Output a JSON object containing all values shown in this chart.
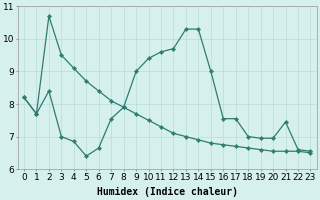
{
  "line1_x": [
    0,
    1,
    2,
    3,
    4,
    5,
    6,
    7,
    8,
    9,
    10,
    11,
    12,
    13,
    14,
    15,
    16,
    17,
    18,
    19,
    20,
    21,
    22,
    23
  ],
  "line1_y": [
    8.2,
    7.7,
    10.7,
    9.5,
    9.1,
    8.7,
    8.4,
    8.1,
    7.9,
    7.7,
    7.5,
    7.3,
    7.1,
    7.0,
    6.9,
    6.8,
    6.75,
    6.7,
    6.65,
    6.6,
    6.55,
    6.55,
    6.55,
    6.5
  ],
  "line2_x": [
    0,
    1,
    2,
    3,
    4,
    5,
    6,
    7,
    8,
    9,
    10,
    11,
    12,
    13,
    14,
    15,
    16,
    17,
    18,
    19,
    20,
    21,
    22,
    23
  ],
  "line2_y": [
    8.2,
    7.7,
    8.4,
    7.0,
    6.85,
    6.4,
    6.65,
    7.55,
    7.9,
    9.0,
    9.4,
    9.6,
    9.7,
    10.3,
    10.3,
    9.0,
    7.55,
    7.55,
    7.0,
    6.95,
    6.95,
    7.45,
    6.6,
    6.55
  ],
  "line_color": "#2e7d6e",
  "bg_color": "#d6f0ee",
  "grid_color": "#b8ddd9",
  "xlabel": "Humidex (Indice chaleur)",
  "ylim": [
    6,
    11
  ],
  "xlim": [
    0,
    23
  ],
  "xlabel_fontsize": 7,
  "tick_fontsize": 6.5,
  "yticks": [
    6,
    7,
    8,
    9,
    10,
    11
  ],
  "xticks": [
    0,
    1,
    2,
    3,
    4,
    5,
    6,
    7,
    8,
    9,
    10,
    11,
    12,
    13,
    14,
    15,
    16,
    17,
    18,
    19,
    20,
    21,
    22,
    23
  ]
}
